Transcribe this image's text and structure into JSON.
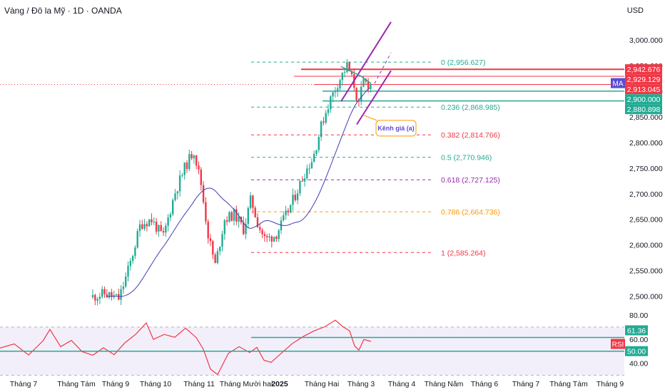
{
  "header": {
    "title": "Vàng / Đô la Mỹ · 1D · OANDA",
    "currency": "USD"
  },
  "chart_data": {
    "type": "candlestick",
    "price_axis": {
      "ticks": [
        "3,000.000",
        "2,950.000",
        "2,900.000",
        "2,850.000",
        "2,800.000",
        "2,750.000",
        "2,700.000",
        "2,650.000",
        "2,600.000",
        "2,550.000",
        "2,500.000"
      ],
      "tick_values": [
        3000,
        2950,
        2900,
        2850,
        2800,
        2750,
        2700,
        2650,
        2600,
        2550,
        2500
      ],
      "range": [
        2480,
        3050
      ]
    },
    "rsi_axis": {
      "ticks": [
        "80.00",
        "60.00",
        "40.00"
      ],
      "tick_values": [
        80,
        60,
        40
      ],
      "range": [
        25,
        90
      ],
      "band": [
        30,
        70
      ]
    },
    "x_axis": {
      "labels": [
        "Tháng 7",
        "Tháng Tám",
        "Tháng 9",
        "Tháng 10",
        "Tháng 11",
        "Tháng Mười hai",
        "2025",
        "Tháng Hai",
        "Tháng 3",
        "Tháng 4",
        "Tháng Năm",
        "Tháng 6",
        "Tháng 7",
        "Tháng Tám",
        "Tháng 9"
      ],
      "bold_index": 6
    },
    "price_badges": [
      {
        "text": "2,942.676",
        "value": 2942.676,
        "color": "#f23645"
      },
      {
        "text": "2,929.129",
        "value": 2929.129,
        "color": "#f23645"
      },
      {
        "text": "2,913.045",
        "value": 2913.045,
        "color": "#f23645"
      },
      {
        "text": "2,900.000",
        "value": 2900.0,
        "color": "#22ab94"
      },
      {
        "text": "2,880.898",
        "value": 2880.898,
        "color": "#22ab94"
      }
    ],
    "ma_badge": {
      "text": "MA",
      "color": "#5b4bd6"
    },
    "rsi_badges": [
      {
        "text": "61.36",
        "value": 61.36,
        "color": "#22ab94"
      },
      {
        "text": "50.00",
        "value": 50.0,
        "color": "#22ab94"
      }
    ],
    "rsi_tag": {
      "text": "RSI",
      "color": "#f23645"
    },
    "fibonacci": [
      {
        "label": "0 (2,956.627)",
        "value": 2956.627,
        "color": "#22ab94"
      },
      {
        "label": "0.236 (2,868.985)",
        "value": 2868.985,
        "color": "#22ab94"
      },
      {
        "label": "0.382 (2,814.766)",
        "value": 2814.766,
        "color": "#f23645"
      },
      {
        "label": "0.5 (2,770.946)",
        "value": 2770.946,
        "color": "#22ab94"
      },
      {
        "label": "0.618 (2,727.125)",
        "value": 2727.125,
        "color": "#9c27b0"
      },
      {
        "label": "0.786 (2,664.736)",
        "value": 2664.736,
        "color": "#ff9800"
      },
      {
        "label": "1 (2,585.264)",
        "value": 2585.264,
        "color": "#f23645"
      }
    ],
    "annotation": {
      "text": "Kênh giá (a)",
      "color": "#5b4bd6",
      "border": "#ff9800"
    },
    "colors": {
      "up": "#22ab94",
      "down": "#f23645",
      "ma": "#3f3fb4",
      "rsi": "#f23645",
      "channel": "#9c27b0",
      "horizontal_red": "#f23645",
      "horizontal_green": "#22ab94"
    }
  }
}
